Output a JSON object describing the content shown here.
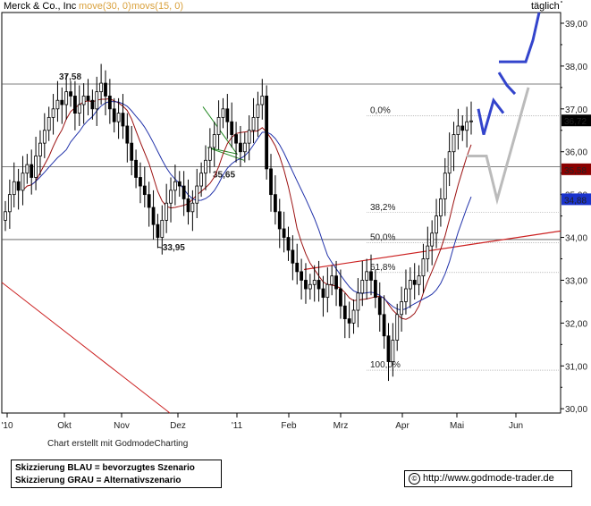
{
  "header": {
    "company": "Merck & Co., Inc",
    "ma1": "move(30, 0)",
    "ma2": "movs(15, 0)",
    "period": "täglich"
  },
  "colors": {
    "price": "#000000",
    "ma1": "#9b1010",
    "ma2": "#2233aa",
    "scenario_blue": "#3344cc",
    "scenario_gray": "#bbbbbb",
    "trend_red": "#cc2222",
    "triangle_green": "#228822",
    "fib": "#999999"
  },
  "chart_data": {
    "type": "candlestick",
    "x_ticks": [
      "'10",
      "Okt",
      "Nov",
      "Dez",
      "'11",
      "Feb",
      "Mrz",
      "Apr",
      "Mai",
      "Jun"
    ],
    "y_ticks": [
      "30,00",
      "31,00",
      "32,00",
      "33,00",
      "34,00",
      "35,00",
      "36,00",
      "37,00",
      "38,00",
      "39,00"
    ],
    "ylim": [
      29.9,
      39.25
    ],
    "price_marks": [
      {
        "label": "36,72",
        "value": 36.72,
        "color": "#000000"
      },
      {
        "label": "35,58",
        "value": 35.58,
        "color": "#8b0000"
      },
      {
        "label": "34,88",
        "value": 34.88,
        "color": "#1a33cc"
      }
    ],
    "levels": [
      {
        "label": "37,58",
        "value": 37.58
      },
      {
        "label": "35,65",
        "value": 35.65
      },
      {
        "label": "~33,95",
        "value": 33.95
      }
    ],
    "fibonacci": [
      {
        "label": "0,0%",
        "value": 36.84
      },
      {
        "label": "38,2%",
        "value": 34.58
      },
      {
        "label": "50,0%",
        "value": 33.88
      },
      {
        "label": "61,8%",
        "value": 33.18
      },
      {
        "label": "100,0%",
        "value": 30.9
      }
    ],
    "closes": [
      34.6,
      35.0,
      35.3,
      35.1,
      35.5,
      35.7,
      35.4,
      35.9,
      36.2,
      36.5,
      36.8,
      37.0,
      37.2,
      37.1,
      37.4,
      37.3,
      36.9,
      37.1,
      37.3,
      37.2,
      37.0,
      37.4,
      37.6,
      37.3,
      37.0,
      36.7,
      36.9,
      36.6,
      36.2,
      35.8,
      35.4,
      35.2,
      35.0,
      34.7,
      34.3,
      34.0,
      34.4,
      34.8,
      35.1,
      35.3,
      35.2,
      34.9,
      34.6,
      34.8,
      35.2,
      35.5,
      35.8,
      36.1,
      36.4,
      36.8,
      37.0,
      36.7,
      36.4,
      36.2,
      36.0,
      36.2,
      36.5,
      36.8,
      37.1,
      37.3,
      35.6,
      35.0,
      34.6,
      34.2,
      34.0,
      33.7,
      33.4,
      33.2,
      33.0,
      32.8,
      32.9,
      33.0,
      32.8,
      32.6,
      32.9,
      33.1,
      32.8,
      32.4,
      32.1,
      32.0,
      32.3,
      32.7,
      33.0,
      33.2,
      33.0,
      32.6,
      32.2,
      31.7,
      31.1,
      31.6,
      32.2,
      32.5,
      32.8,
      33.0,
      32.9,
      33.1,
      33.5,
      33.8,
      34.1,
      34.5,
      34.9,
      35.5,
      36.0,
      36.4,
      36.6,
      36.5,
      36.7,
      36.72
    ],
    "scenario_blue": [
      [
        37.0,
        36.4,
        37.2,
        36.9
      ],
      [
        37.85,
        37.55,
        37.35
      ],
      [
        38.1,
        38.1,
        38.6,
        39.25
      ]
    ],
    "scenario_gray": [
      [
        35.9,
        35.9,
        34.88,
        37.5
      ]
    ]
  },
  "footer": {
    "credit": "Chart erstellt mit GodmodeCharting",
    "legend_blue": "Skizzierung BLAU = bevorzugtes Szenario",
    "legend_gray": "Skizzierung GRAU = Alternativszenario",
    "url": "http://www.godmode-trader.de",
    "copyright_symbol": "©"
  }
}
